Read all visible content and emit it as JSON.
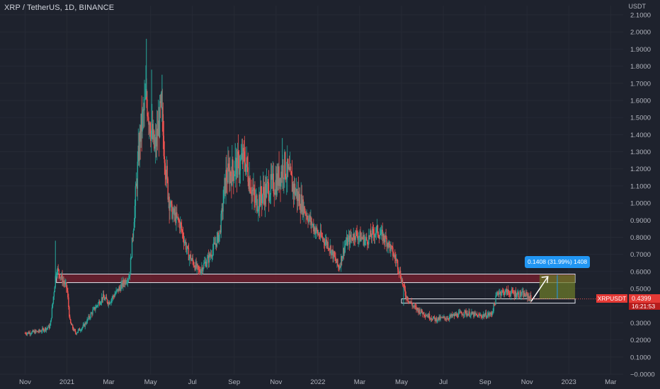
{
  "header": {
    "title": "XRP / TetherUS, 1D, BINANCE",
    "unit": "USDT"
  },
  "price_tag": {
    "symbol": "XRPUSDT",
    "value": "0.4399",
    "countdown": "16:21:53"
  },
  "measure": {
    "label": "0.1408 (31.99%) 1408"
  },
  "colors": {
    "background": "#1e222d",
    "up": "#26a69a",
    "down": "#ef5350",
    "resistance_fill": "#7a1f2e",
    "box_border": "#e0e3eb",
    "measure_fill": "#6b7a2a",
    "accent": "#2196f3"
  },
  "chart_data": {
    "type": "candlestick",
    "symbol": "XRP / TetherUS",
    "timeframe": "1D",
    "exchange": "BINANCE",
    "y_axis": {
      "unit": "USDT",
      "range": [
        0.0,
        2.1
      ],
      "ticks": [
        "2.1000",
        "2.0000",
        "1.9000",
        "1.8000",
        "1.7000",
        "1.6000",
        "1.5000",
        "1.4000",
        "1.3000",
        "1.2000",
        "1.1000",
        "1.0000",
        "0.9000",
        "0.8000",
        "0.7000",
        "0.6000",
        "0.5000",
        "0.4000",
        "0.3000",
        "0.2000",
        "0.1000",
        "0.0000"
      ]
    },
    "x_axis": {
      "ticks": [
        "Nov",
        "2021",
        "Mar",
        "May",
        "Jul",
        "Sep",
        "Nov",
        "2022",
        "Mar",
        "May",
        "Jul",
        "Sep",
        "Nov",
        "2023",
        "Mar"
      ]
    },
    "x_tick_values": [
      0,
      2,
      4,
      6,
      8,
      10,
      12,
      14,
      16,
      18,
      20,
      22,
      24,
      26,
      28
    ],
    "price_series": [
      {
        "t": 0,
        "v": 0.24
      },
      {
        "t": 0.7,
        "v": 0.25
      },
      {
        "t": 1.2,
        "v": 0.28
      },
      {
        "t": 1.5,
        "v": 0.62
      },
      {
        "t": 1.75,
        "v": 0.56
      },
      {
        "t": 2.0,
        "v": 0.5
      },
      {
        "t": 2.15,
        "v": 0.3
      },
      {
        "t": 2.4,
        "v": 0.24
      },
      {
        "t": 2.8,
        "v": 0.28
      },
      {
        "t": 3.2,
        "v": 0.36
      },
      {
        "t": 3.7,
        "v": 0.45
      },
      {
        "t": 4.0,
        "v": 0.42
      },
      {
        "t": 4.5,
        "v": 0.5
      },
      {
        "t": 5.0,
        "v": 0.58
      },
      {
        "t": 5.2,
        "v": 0.9
      },
      {
        "t": 5.5,
        "v": 1.4
      },
      {
        "t": 5.8,
        "v": 1.62
      },
      {
        "t": 6.0,
        "v": 1.45
      },
      {
        "t": 6.2,
        "v": 1.3
      },
      {
        "t": 6.5,
        "v": 1.55
      },
      {
        "t": 6.8,
        "v": 1.1
      },
      {
        "t": 7.0,
        "v": 0.95
      },
      {
        "t": 7.4,
        "v": 0.88
      },
      {
        "t": 7.8,
        "v": 0.7
      },
      {
        "t": 8.3,
        "v": 0.6
      },
      {
        "t": 8.8,
        "v": 0.68
      },
      {
        "t": 9.3,
        "v": 0.82
      },
      {
        "t": 9.6,
        "v": 1.15
      },
      {
        "t": 10.0,
        "v": 1.2
      },
      {
        "t": 10.5,
        "v": 1.26
      },
      {
        "t": 11.0,
        "v": 1.0
      },
      {
        "t": 11.5,
        "v": 1.07
      },
      {
        "t": 12.0,
        "v": 1.12
      },
      {
        "t": 12.4,
        "v": 1.22
      },
      {
        "t": 12.8,
        "v": 1.1
      },
      {
        "t": 13.2,
        "v": 1.0
      },
      {
        "t": 13.6,
        "v": 0.9
      },
      {
        "t": 14.0,
        "v": 0.82
      },
      {
        "t": 14.5,
        "v": 0.76
      },
      {
        "t": 15.0,
        "v": 0.62
      },
      {
        "t": 15.3,
        "v": 0.76
      },
      {
        "t": 15.8,
        "v": 0.82
      },
      {
        "t": 16.3,
        "v": 0.78
      },
      {
        "t": 16.8,
        "v": 0.84
      },
      {
        "t": 17.3,
        "v": 0.78
      },
      {
        "t": 17.8,
        "v": 0.65
      },
      {
        "t": 18.2,
        "v": 0.46
      },
      {
        "t": 18.6,
        "v": 0.39
      },
      {
        "t": 19.0,
        "v": 0.36
      },
      {
        "t": 19.6,
        "v": 0.32
      },
      {
        "t": 20.2,
        "v": 0.33
      },
      {
        "t": 21.0,
        "v": 0.36
      },
      {
        "t": 21.7,
        "v": 0.34
      },
      {
        "t": 22.3,
        "v": 0.35
      },
      {
        "t": 22.6,
        "v": 0.48
      },
      {
        "t": 23.0,
        "v": 0.48
      },
      {
        "t": 23.5,
        "v": 0.47
      },
      {
        "t": 24.0,
        "v": 0.46
      },
      {
        "t": 24.2,
        "v": 0.44
      }
    ],
    "resistance_zone": {
      "y_low": 0.535,
      "y_high": 0.585,
      "t_start": 1.5,
      "t_end": 26.3
    },
    "support_zone": {
      "y_low": 0.415,
      "y_high": 0.44,
      "t_start": 18.0,
      "t_end": 26.3
    },
    "measure_box": {
      "t_start": 24.6,
      "t_end": 26.3,
      "y_low": 0.44,
      "y_high": 0.58
    },
    "last_price": 0.4399
  }
}
